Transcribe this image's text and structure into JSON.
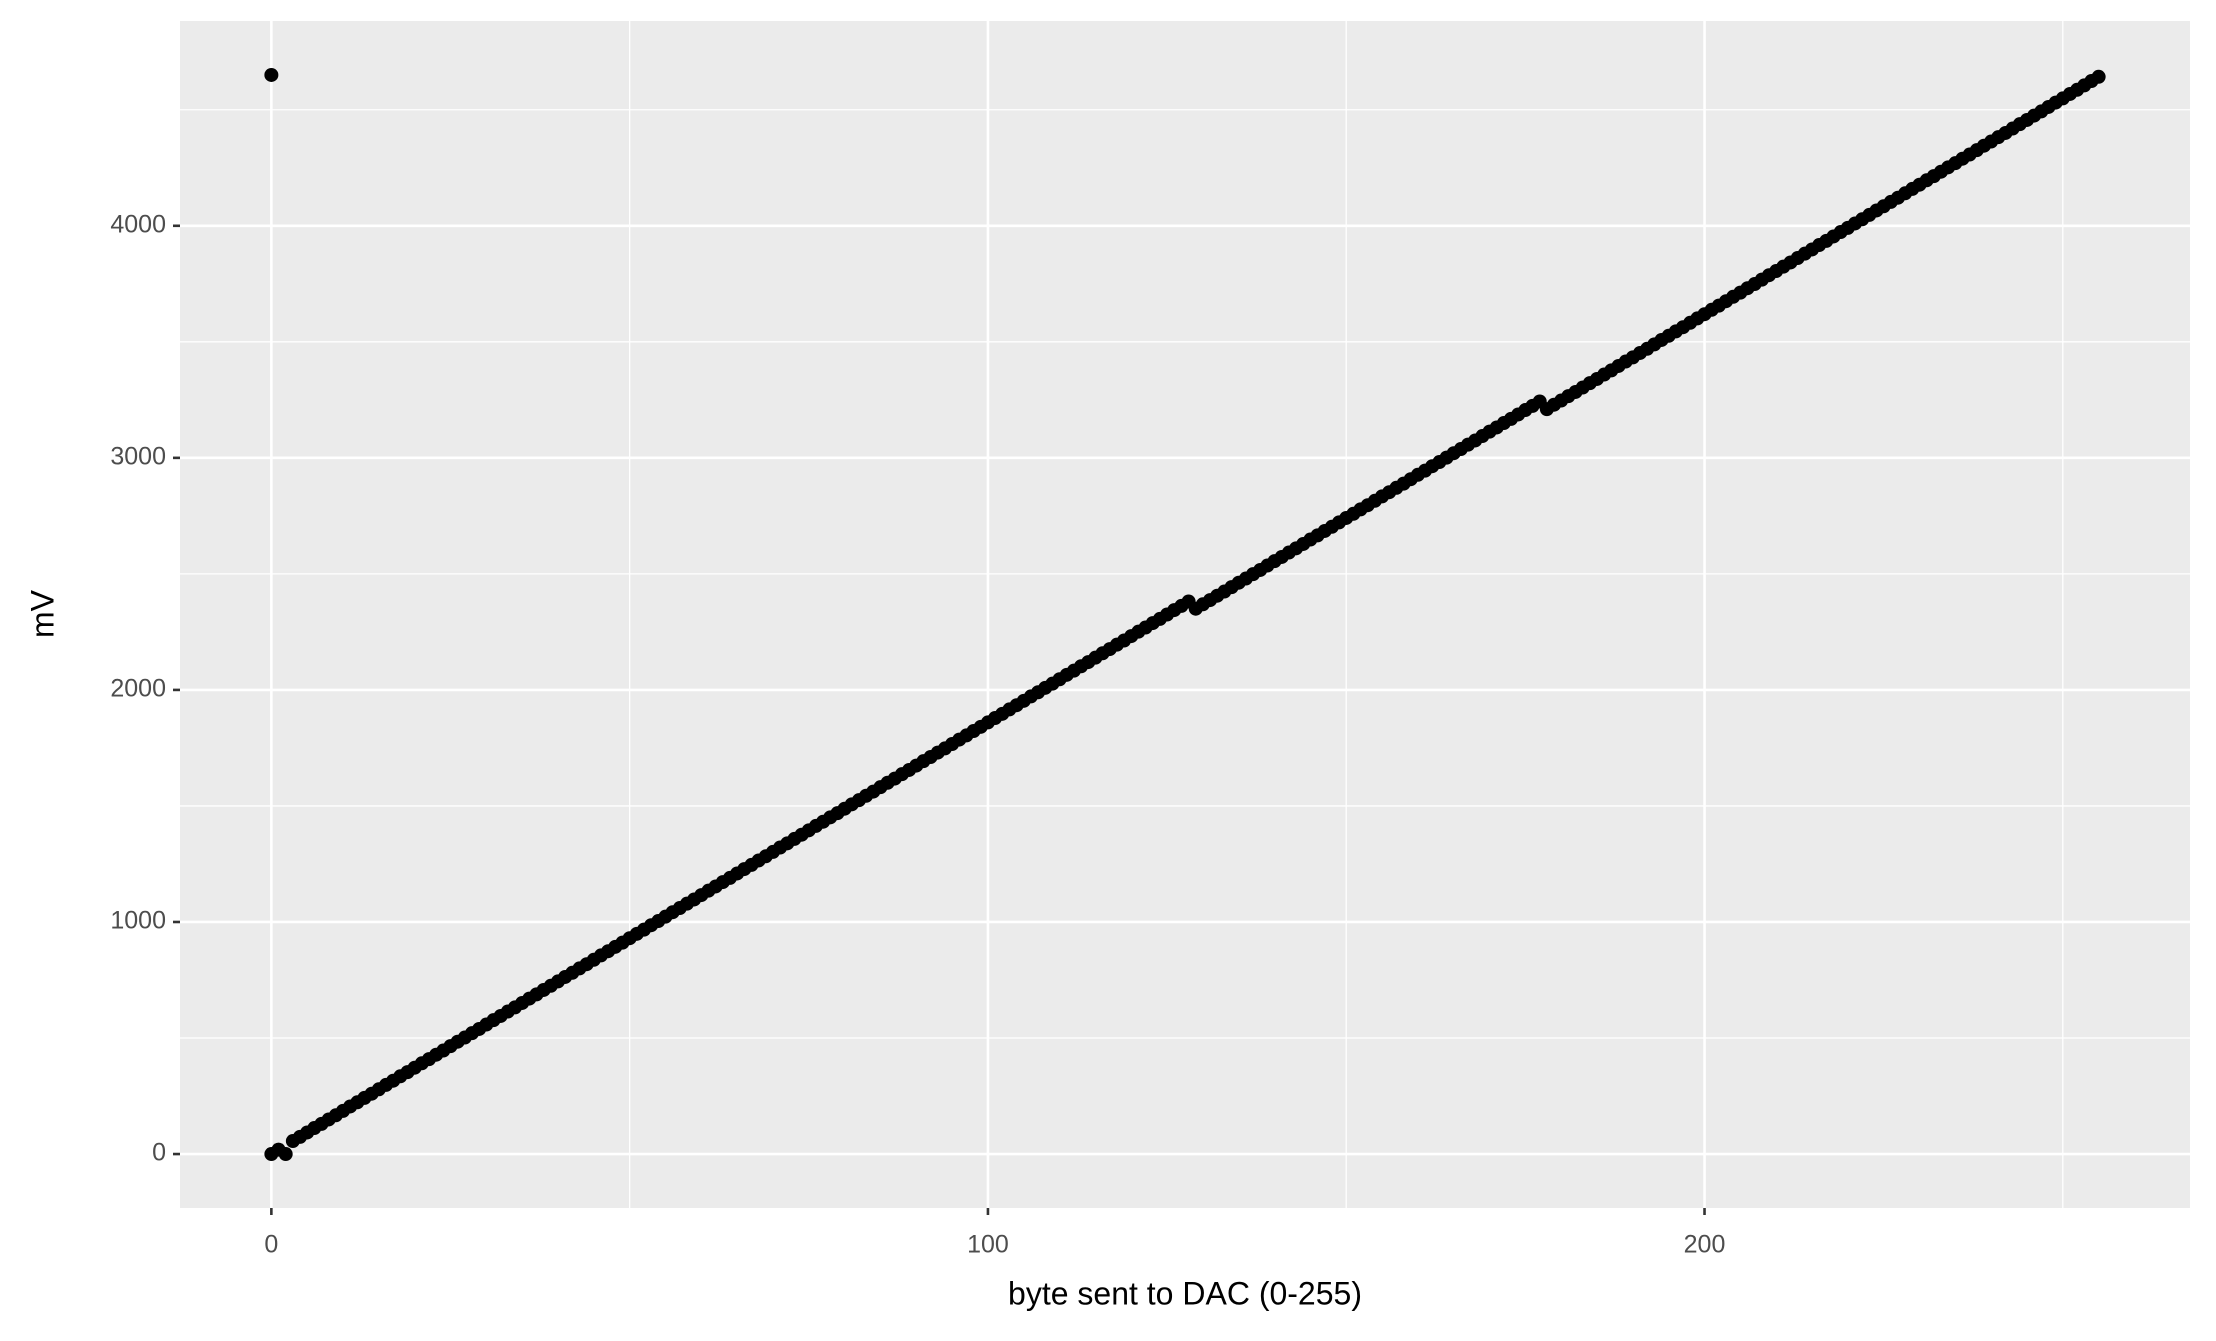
{
  "chart_data": {
    "type": "scatter",
    "xlabel": "byte sent to DAC (0-255)",
    "ylabel": "mV",
    "x": [
      0,
      1,
      2,
      3,
      4,
      5,
      6,
      7,
      8,
      9,
      10,
      11,
      12,
      13,
      14,
      15,
      16,
      17,
      18,
      19,
      20,
      21,
      22,
      23,
      24,
      25,
      26,
      27,
      28,
      29,
      30,
      31,
      32,
      33,
      34,
      35,
      36,
      37,
      38,
      39,
      40,
      41,
      42,
      43,
      44,
      45,
      46,
      47,
      48,
      49,
      50,
      51,
      52,
      53,
      54,
      55,
      56,
      57,
      58,
      59,
      60,
      61,
      62,
      63,
      64,
      65,
      66,
      67,
      68,
      69,
      70,
      71,
      72,
      73,
      74,
      75,
      76,
      77,
      78,
      79,
      80,
      81,
      82,
      83,
      84,
      85,
      86,
      87,
      88,
      89,
      90,
      91,
      92,
      93,
      94,
      95,
      96,
      97,
      98,
      99,
      100,
      101,
      102,
      103,
      104,
      105,
      106,
      107,
      108,
      109,
      110,
      111,
      112,
      113,
      114,
      115,
      116,
      117,
      118,
      119,
      120,
      121,
      122,
      123,
      124,
      125,
      126,
      127,
      128,
      129,
      130,
      131,
      132,
      133,
      134,
      135,
      136,
      137,
      138,
      139,
      140,
      141,
      142,
      143,
      144,
      145,
      146,
      147,
      148,
      149,
      150,
      151,
      152,
      153,
      154,
      155,
      156,
      157,
      158,
      159,
      160,
      161,
      162,
      163,
      164,
      165,
      166,
      167,
      168,
      169,
      170,
      171,
      172,
      173,
      174,
      175,
      176,
      177,
      178,
      179,
      180,
      181,
      182,
      183,
      184,
      185,
      186,
      187,
      188,
      189,
      190,
      191,
      192,
      193,
      194,
      195,
      196,
      197,
      198,
      199,
      200,
      201,
      202,
      203,
      204,
      205,
      206,
      207,
      208,
      209,
      210,
      211,
      212,
      213,
      214,
      215,
      216,
      217,
      218,
      219,
      220,
      221,
      222,
      223,
      224,
      225,
      226,
      227,
      228,
      229,
      230,
      231,
      232,
      233,
      234,
      235,
      236,
      237,
      238,
      239,
      240,
      241,
      242,
      243,
      244,
      245,
      246,
      247,
      248,
      249,
      250,
      251,
      252,
      253,
      254,
      255,
      0
    ],
    "values": [
      0,
      19,
      0,
      56,
      74,
      93,
      112,
      130,
      149,
      167,
      186,
      205,
      223,
      242,
      260,
      279,
      298,
      316,
      335,
      353,
      372,
      391,
      409,
      428,
      446,
      465,
      484,
      502,
      521,
      539,
      558,
      577,
      595,
      614,
      632,
      651,
      670,
      688,
      707,
      725,
      744,
      763,
      781,
      800,
      818,
      837,
      856,
      874,
      893,
      911,
      930,
      949,
      967,
      986,
      1004,
      1023,
      1042,
      1060,
      1079,
      1097,
      1116,
      1135,
      1153,
      1172,
      1190,
      1209,
      1228,
      1246,
      1265,
      1283,
      1302,
      1321,
      1339,
      1358,
      1376,
      1395,
      1414,
      1432,
      1451,
      1469,
      1488,
      1507,
      1525,
      1544,
      1562,
      1581,
      1600,
      1618,
      1637,
      1655,
      1674,
      1693,
      1711,
      1730,
      1748,
      1767,
      1786,
      1804,
      1823,
      1841,
      1860,
      1879,
      1897,
      1916,
      1934,
      1953,
      1972,
      1990,
      2009,
      2027,
      2046,
      2065,
      2083,
      2102,
      2120,
      2139,
      2158,
      2176,
      2195,
      2213,
      2232,
      2251,
      2269,
      2288,
      2306,
      2325,
      2344,
      2362,
      2381,
      2350,
      2369,
      2387,
      2406,
      2424,
      2443,
      2462,
      2480,
      2499,
      2517,
      2536,
      2555,
      2573,
      2592,
      2610,
      2629,
      2648,
      2666,
      2685,
      2703,
      2722,
      2741,
      2759,
      2778,
      2796,
      2815,
      2834,
      2852,
      2871,
      2889,
      2908,
      2927,
      2945,
      2964,
      2982,
      3001,
      3020,
      3038,
      3057,
      3075,
      3094,
      3113,
      3131,
      3150,
      3168,
      3187,
      3206,
      3224,
      3243,
      3210,
      3229,
      3247,
      3266,
      3284,
      3303,
      3322,
      3340,
      3359,
      3377,
      3396,
      3415,
      3433,
      3452,
      3470,
      3489,
      3508,
      3526,
      3545,
      3563,
      3582,
      3601,
      3619,
      3638,
      3656,
      3675,
      3694,
      3712,
      3731,
      3749,
      3768,
      3787,
      3805,
      3824,
      3842,
      3861,
      3880,
      3898,
      3917,
      3935,
      3954,
      3973,
      3991,
      4010,
      4028,
      4047,
      4066,
      4084,
      4103,
      4121,
      4140,
      4159,
      4177,
      4196,
      4214,
      4233,
      4252,
      4270,
      4289,
      4307,
      4326,
      4345,
      4363,
      4382,
      4400,
      4419,
      4438,
      4456,
      4475,
      4493,
      4512,
      4531,
      4549,
      4568,
      4586,
      4605,
      4624,
      4642,
      4650
    ],
    "color": "#000000",
    "xlim": [
      -12.75,
      267.75
    ],
    "ylim": [
      -232.5,
      4882.5
    ],
    "xticks": [
      0,
      100,
      200
    ],
    "yticks": [
      0,
      1000,
      2000,
      3000,
      4000
    ],
    "xminor": [
      50,
      150,
      250
    ],
    "yminor": [
      500,
      1500,
      2500,
      3500,
      4500
    ],
    "grid": true
  }
}
